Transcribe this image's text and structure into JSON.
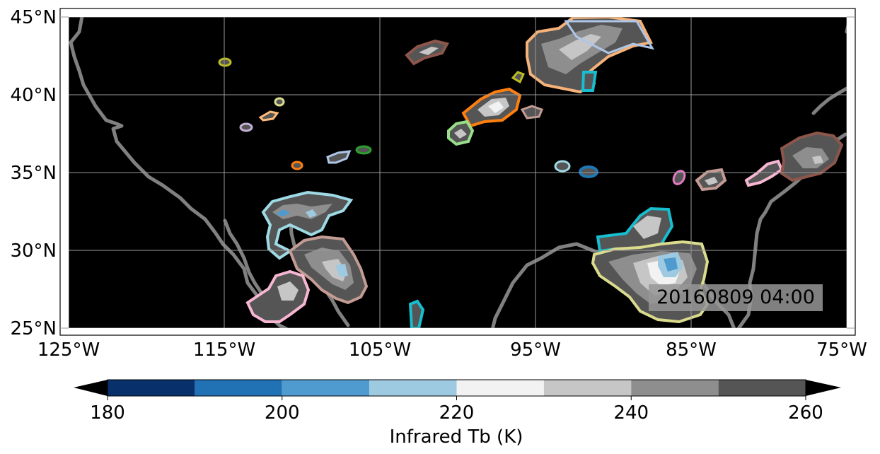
{
  "map": {
    "timestamp": "20160809 04:00",
    "lat_ticks": [
      "45°N",
      "40°N",
      "35°N",
      "30°N",
      "25°N"
    ],
    "lon_ticks": [
      "125°W",
      "115°W",
      "105°W",
      "95°W",
      "85°W",
      "75°W"
    ],
    "extent": {
      "lon_min": -125,
      "lon_max": -75,
      "lat_min": 25,
      "lat_max": 45
    },
    "background_color": "#000000",
    "coastline_color": "#808080",
    "gridlines": true
  },
  "colorbar": {
    "label": "Infrared Tb (K)",
    "tick_labels": [
      "180",
      "200",
      "220",
      "240",
      "260"
    ],
    "bins": [
      180,
      190,
      200,
      210,
      220,
      230,
      240,
      250,
      260
    ],
    "colors": [
      "#08306b",
      "#2171b5",
      "#4f9bd0",
      "#9ecae1",
      "#f2f2f2",
      "#c6c6c6",
      "#8e8e8e",
      "#555555"
    ],
    "extend": "both"
  }
}
